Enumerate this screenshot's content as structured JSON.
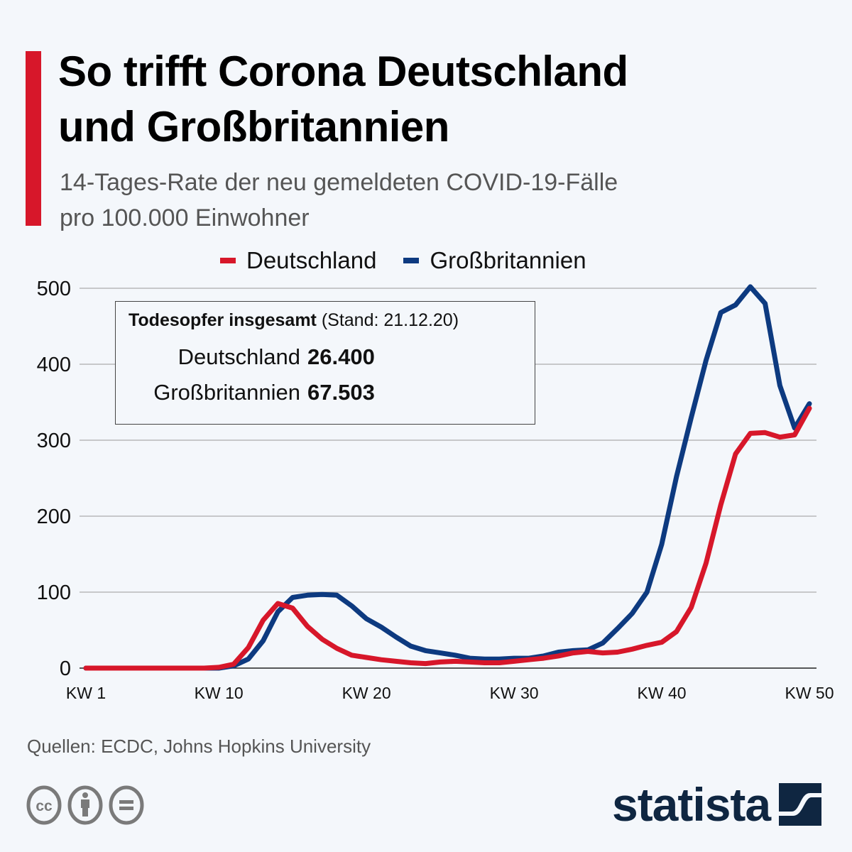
{
  "header": {
    "title_line1": "So trifft Corona Deutschland",
    "title_line2": "und Großbritannien",
    "subtitle_line1": "14-Tages-Rate der neu gemeldeten COVID-19-Fälle",
    "subtitle_line2": "pro 100.000 Einwohner"
  },
  "colors": {
    "accent": "#d7172a",
    "deutschland": "#d7172a",
    "grossbritannien": "#0d3a80",
    "brand": "#0f2641",
    "grid": "#9a9a9a",
    "icon_gray": "#7a7a7a"
  },
  "legend": {
    "items": [
      {
        "label": "Deutschland",
        "color": "#d7172a"
      },
      {
        "label": "Großbritannien",
        "color": "#0d3a80"
      }
    ]
  },
  "infobox": {
    "heading_bold": "Todesopfer insgesamt",
    "heading_note": "(Stand: 21.12.20)",
    "rows": [
      {
        "label": "Deutschland",
        "value": "26.400"
      },
      {
        "label": "Großbritannien",
        "value": "67.503"
      }
    ]
  },
  "chart_data": {
    "type": "line",
    "title": "So trifft Corona Deutschland und Großbritannien",
    "subtitle": "14-Tages-Rate der neu gemeldeten COVID-19-Fälle pro 100.000 Einwohner",
    "xlabel": "",
    "ylabel": "",
    "x": [
      1,
      2,
      3,
      4,
      5,
      6,
      7,
      8,
      9,
      10,
      11,
      12,
      13,
      14,
      15,
      16,
      17,
      18,
      19,
      20,
      21,
      22,
      23,
      24,
      25,
      26,
      27,
      28,
      29,
      30,
      31,
      32,
      33,
      34,
      35,
      36,
      37,
      38,
      39,
      40,
      41,
      42,
      43,
      44,
      45,
      46,
      47,
      48,
      49,
      50
    ],
    "xlim": [
      1,
      50
    ],
    "x_ticks": [
      1,
      10,
      20,
      30,
      40,
      50
    ],
    "x_tick_labels": [
      "KW 1",
      "KW 10",
      "KW 20",
      "KW 30",
      "KW 40",
      "KW 50"
    ],
    "ylim": [
      0,
      500
    ],
    "y_ticks": [
      0,
      100,
      200,
      300,
      400,
      500
    ],
    "y_tick_labels": [
      "0",
      "100",
      "200",
      "300",
      "400",
      "500"
    ],
    "grid": true,
    "legend_position": "top-center",
    "series": [
      {
        "name": "Deutschland",
        "color": "#d7172a",
        "values": [
          0,
          0,
          0,
          0,
          0,
          0,
          0,
          0,
          0,
          1,
          5,
          27,
          63,
          85,
          79,
          55,
          38,
          26,
          17,
          14,
          11,
          9,
          7,
          6,
          8,
          9,
          8,
          7,
          7,
          9,
          11,
          13,
          16,
          20,
          22,
          20,
          21,
          25,
          30,
          34,
          48,
          80,
          138,
          215,
          282,
          309,
          310,
          304,
          307,
          342
        ]
      },
      {
        "name": "Großbritannien",
        "color": "#0d3a80",
        "values": [
          0,
          0,
          0,
          0,
          0,
          0,
          0,
          0,
          0,
          0,
          3,
          12,
          36,
          74,
          93,
          96,
          97,
          96,
          82,
          65,
          54,
          41,
          29,
          23,
          20,
          17,
          13,
          12,
          12,
          13,
          13,
          16,
          21,
          23,
          24,
          33,
          52,
          72,
          100,
          163,
          252,
          330,
          405,
          468,
          478,
          502,
          480,
          372,
          316,
          348
        ]
      }
    ]
  },
  "footer": {
    "source": "Quellen: ECDC, Johns Hopkins University",
    "license_icons": [
      "cc-icon",
      "attribution-icon",
      "no-derivatives-icon"
    ],
    "brand": "statista"
  }
}
